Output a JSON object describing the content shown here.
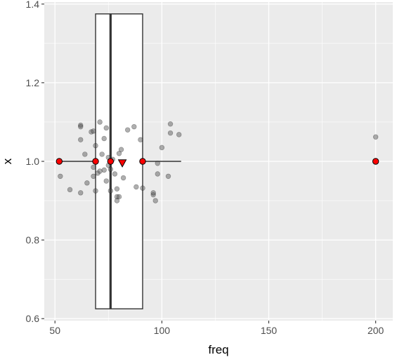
{
  "chart_data": {
    "type": "scatter",
    "title": "",
    "xlabel": "freq",
    "ylabel": "x",
    "xlim": [
      45,
      208
    ],
    "ylim": [
      0.595,
      1.405
    ],
    "x_ticks": [
      50,
      100,
      150,
      200
    ],
    "x_tick_labels": [
      "50",
      "100",
      "150",
      "200"
    ],
    "y_ticks": [
      0.6,
      0.8,
      1.0,
      1.2,
      1.4
    ],
    "y_tick_labels": [
      "0.6",
      "0.8",
      "1.0",
      "1.2",
      "1.4"
    ],
    "grid": true,
    "legend": "none",
    "colors": {
      "panel": "#ebebeb",
      "grid": "#ffffff",
      "points": "#4d4d4d",
      "box_fill": "#ffffff",
      "box_line": "#333333",
      "summary": "#ff0000"
    },
    "jitter_points": [
      {
        "x": 52.5,
        "y": 0.962
      },
      {
        "x": 57,
        "y": 0.928
      },
      {
        "x": 62,
        "y": 1.092
      },
      {
        "x": 62,
        "y": 1.088
      },
      {
        "x": 62,
        "y": 1.055
      },
      {
        "x": 62,
        "y": 0.92
      },
      {
        "x": 64,
        "y": 1.018
      },
      {
        "x": 65,
        "y": 0.945
      },
      {
        "x": 67,
        "y": 1.075
      },
      {
        "x": 68,
        "y": 1.077
      },
      {
        "x": 68,
        "y": 0.985
      },
      {
        "x": 68,
        "y": 0.962
      },
      {
        "x": 69,
        "y": 0.925
      },
      {
        "x": 69,
        "y": 1.04
      },
      {
        "x": 70,
        "y": 0.97
      },
      {
        "x": 71,
        "y": 1.1
      },
      {
        "x": 71,
        "y": 0.975
      },
      {
        "x": 72,
        "y": 1.018
      },
      {
        "x": 73,
        "y": 0.978
      },
      {
        "x": 73,
        "y": 1.058
      },
      {
        "x": 74,
        "y": 1.085
      },
      {
        "x": 74,
        "y": 0.95
      },
      {
        "x": 75,
        "y": 1.01
      },
      {
        "x": 75,
        "y": 0.99
      },
      {
        "x": 76,
        "y": 0.98
      },
      {
        "x": 76,
        "y": 0.925
      },
      {
        "x": 77,
        "y": 1.005
      },
      {
        "x": 78,
        "y": 0.968
      },
      {
        "x": 79,
        "y": 0.93
      },
      {
        "x": 79,
        "y": 0.91
      },
      {
        "x": 79,
        "y": 0.9
      },
      {
        "x": 80,
        "y": 1.02
      },
      {
        "x": 80,
        "y": 0.91
      },
      {
        "x": 81,
        "y": 1.03
      },
      {
        "x": 82,
        "y": 0.958
      },
      {
        "x": 84,
        "y": 1.08
      },
      {
        "x": 87,
        "y": 1.088
      },
      {
        "x": 88,
        "y": 0.935
      },
      {
        "x": 90,
        "y": 1.055
      },
      {
        "x": 91,
        "y": 0.932
      },
      {
        "x": 96,
        "y": 0.915
      },
      {
        "x": 96,
        "y": 0.92
      },
      {
        "x": 97,
        "y": 0.9
      },
      {
        "x": 98,
        "y": 0.968
      },
      {
        "x": 98,
        "y": 0.995
      },
      {
        "x": 100,
        "y": 1.035
      },
      {
        "x": 103,
        "y": 0.962
      },
      {
        "x": 104,
        "y": 1.095
      },
      {
        "x": 104,
        "y": 1.072
      },
      {
        "x": 108,
        "y": 1.068
      },
      {
        "x": 200,
        "y": 1.062
      }
    ],
    "boxplot": {
      "y": 1.0,
      "width": 0.75,
      "whisker_low": 52,
      "q1": 69,
      "median": 76,
      "q3": 91,
      "whisker_high": 109,
      "outliers": [
        200
      ]
    },
    "summary_points": [
      {
        "x": 52,
        "y": 1.0
      },
      {
        "x": 69,
        "y": 1.0
      },
      {
        "x": 76,
        "y": 1.0
      },
      {
        "x": 91,
        "y": 1.0
      },
      {
        "x": 200,
        "y": 1.0
      }
    ],
    "mean_marker": {
      "x": 81.5,
      "y": 0.995,
      "shape": "triangle-down"
    }
  }
}
